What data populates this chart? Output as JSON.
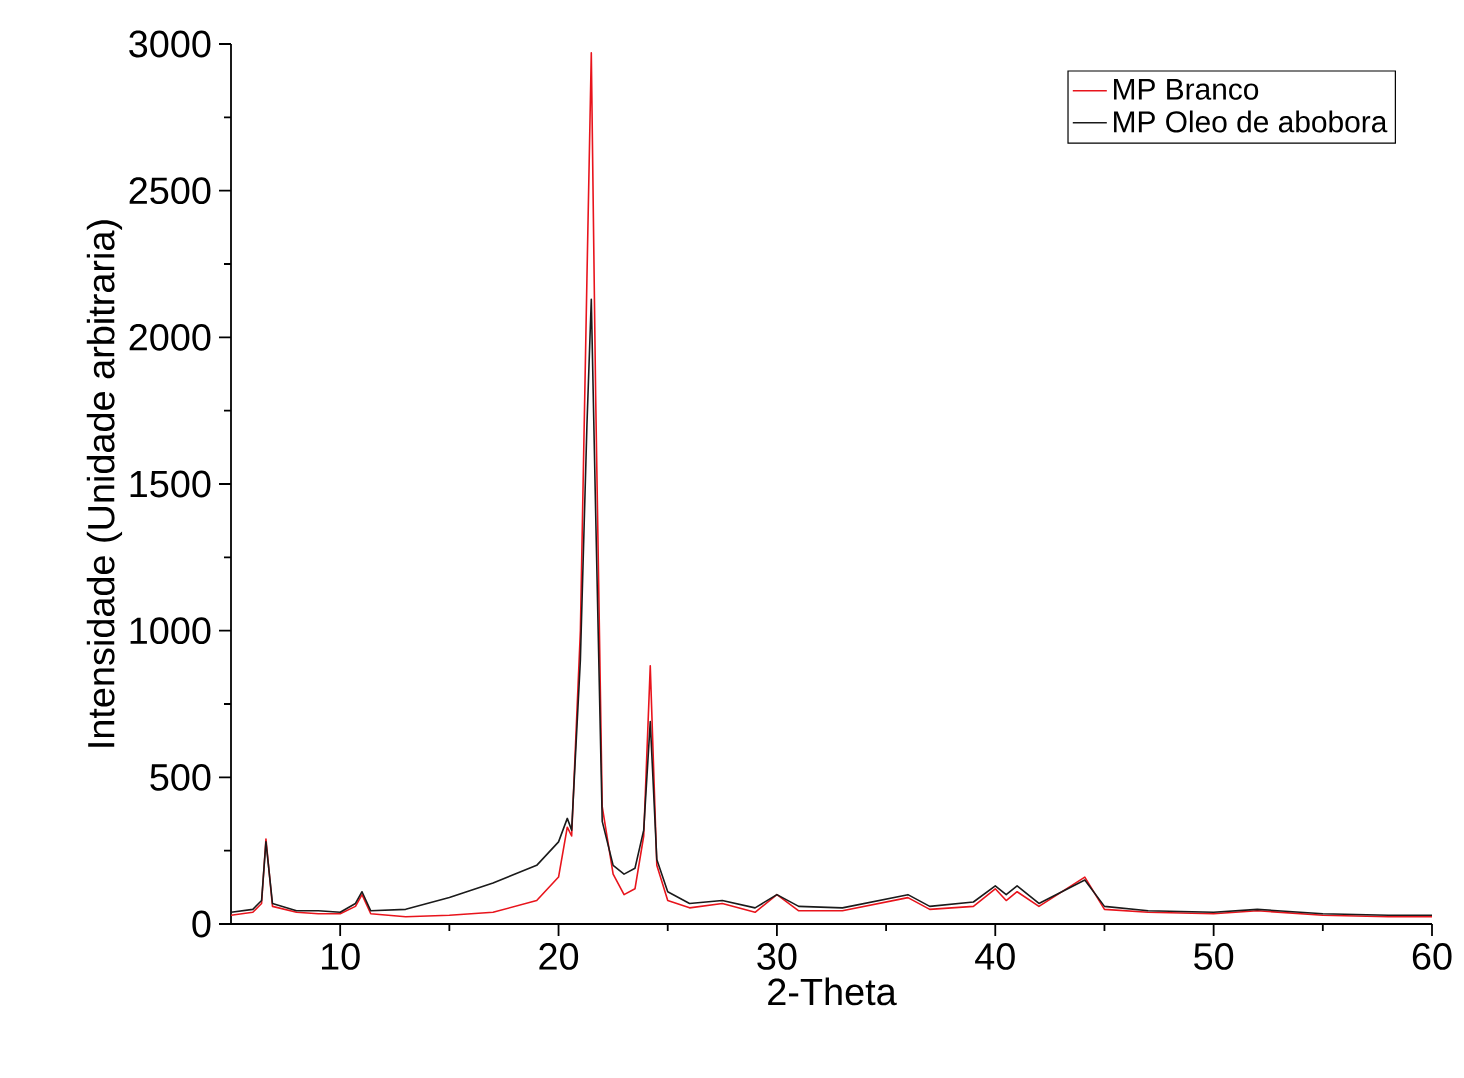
{
  "chart_data": {
    "type": "line",
    "xlabel": "2-Theta",
    "ylabel": "Intensidade (Unidade arbitraria)",
    "xlim": [
      5,
      60
    ],
    "ylim": [
      0,
      3000
    ],
    "xticks": [
      10,
      20,
      30,
      40,
      50,
      60
    ],
    "yticks": [
      0,
      500,
      1000,
      1500,
      2000,
      2500,
      3000
    ],
    "grid": false,
    "legend": "top right",
    "marker": "none",
    "line_style": "solid",
    "x": [
      5,
      6,
      6.4,
      6.6,
      6.9,
      8,
      9,
      10,
      10.7,
      11,
      11.4,
      13,
      15,
      17,
      19,
      20,
      20.4,
      20.6,
      21,
      21.3,
      21.5,
      21.7,
      22,
      22.5,
      23,
      23.5,
      23.9,
      24.2,
      24.5,
      25,
      26,
      27.5,
      29,
      30,
      31,
      33,
      36,
      37,
      39,
      40,
      40.5,
      41,
      42,
      44.1,
      45,
      47,
      50,
      52,
      55,
      58,
      60
    ],
    "series": [
      {
        "name": "MP Branco",
        "color": "#e8141c",
        "values": [
          30,
          40,
          70,
          290,
          60,
          40,
          35,
          35,
          60,
          100,
          35,
          25,
          30,
          40,
          80,
          160,
          330,
          300,
          1000,
          2200,
          2970,
          1800,
          400,
          170,
          100,
          120,
          300,
          880,
          200,
          80,
          55,
          70,
          40,
          100,
          45,
          45,
          90,
          50,
          60,
          120,
          80,
          110,
          60,
          160,
          50,
          40,
          35,
          45,
          30,
          25,
          25
        ]
      },
      {
        "name": "MP Oleo de abobora",
        "color": "#1a1a1a",
        "values": [
          40,
          50,
          80,
          280,
          70,
          45,
          45,
          40,
          70,
          110,
          45,
          50,
          90,
          140,
          200,
          280,
          360,
          320,
          900,
          1700,
          2130,
          1400,
          350,
          200,
          170,
          190,
          320,
          690,
          220,
          110,
          70,
          80,
          55,
          100,
          60,
          55,
          100,
          60,
          75,
          130,
          100,
          130,
          70,
          150,
          60,
          45,
          40,
          50,
          35,
          30,
          30
        ]
      }
    ]
  }
}
